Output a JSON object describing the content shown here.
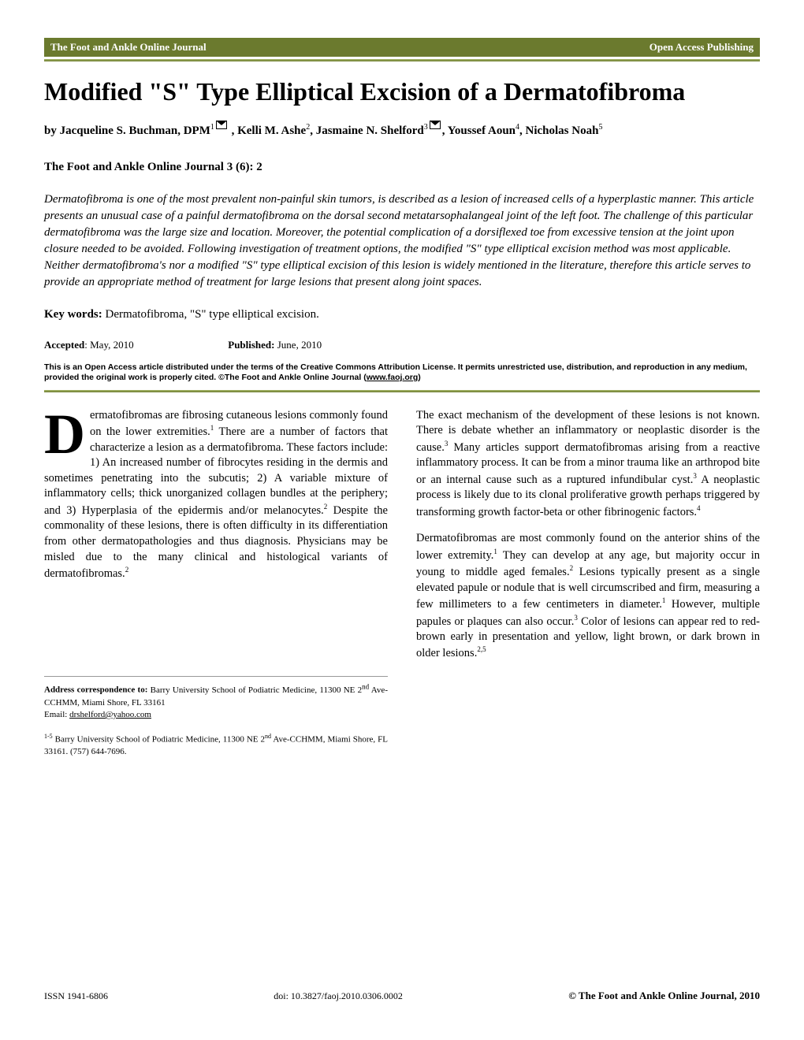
{
  "header": {
    "left": "The Foot and Ankle Online Journal",
    "right": "Open Access Publishing"
  },
  "title": "Modified \"S\" Type Elliptical Excision of a Dermatofibroma",
  "authors_html": "by Jacqueline S. Buchman, DPM<sup>1</sup><span class=\"envelope-icon\" data-name=\"mail-icon\" data-interactable=\"false\"></span> , Kelli M. Ashe<sup>2</sup>, Jasmaine N. Shelford<sup>3</sup><span class=\"envelope-icon\" data-name=\"mail-icon\" data-interactable=\"false\"></span>, Youssef Aoun<sup>4</sup>, Nicholas Noah<sup>5</sup>",
  "journal_ref": "The Foot and Ankle Online Journal 3 (6): 2",
  "abstract": "Dermatofibroma is one of the most prevalent non-painful skin tumors, is described as a lesion of increased cells of a hyperplastic manner.  This article presents an unusual case of a painful dermatofibroma on the dorsal second metatarsophalangeal joint of the left foot. The challenge of this particular dermatofibroma was the large size and location.  Moreover, the potential complication of a dorsiflexed toe from excessive tension at the joint upon closure needed to be avoided. Following investigation of treatment options, the modified \"S\" type elliptical excision method was most applicable.  Neither dermatofibroma's nor a modified \"S\" type elliptical excision of this lesion is widely mentioned in the literature, therefore this article serves to provide an appropriate method of treatment for large lesions that present along joint spaces.",
  "keywords": {
    "label": "Key words:",
    "text": "  Dermatofibroma, \"S\" type elliptical excision."
  },
  "dates": {
    "accepted_label": "Accepted",
    "accepted_value": ":  May, 2010",
    "published_label": "Published:",
    "published_value": "  June, 2010"
  },
  "license": {
    "text": "This is an Open Access article distributed under the terms of the Creative Commons Attribution License.  It permits unrestricted use, distribution, and reproduction in any medium, provided the original work is properly cited. ©The Foot and Ankle Online Journal (",
    "link_text": "www.faoj.org",
    "suffix": ")"
  },
  "body": {
    "dropcap": "D",
    "col1_p1": "ermatofibromas are fibrosing cutaneous lesions commonly found on the lower extremities.<sup>1</sup>  There are a number of factors that characterize a lesion as a dermatofibroma. These factors include:  1) An increased number of fibrocytes residing in the dermis and sometimes penetrating into the subcutis; 2) A variable mixture of inflammatory cells; thick unorganized collagen bundles at the periphery; and 3) Hyperplasia of the epidermis and/or melanocytes.<sup>2</sup>  Despite the commonality of these lesions, there is often difficulty in its differentiation from other dermatopathologies and thus diagnosis. Physicians may be misled due to the many clinical and histological variants of dermatofibromas.<sup>2</sup>",
    "col2_p1": "The exact mechanism of the development of these lesions is not known. There is debate whether an inflammatory or neoplastic disorder is the cause.<sup>3</sup> Many articles support dermatofibromas arising from a reactive inflammatory process.  It can be from a minor trauma like an arthropod bite or an internal cause such as a ruptured infundibular cyst.<sup>3</sup>  A neoplastic process is likely due to its clonal proliferative growth perhaps triggered by transforming growth factor-beta or other fibrinogenic factors.<sup>4</sup>",
    "col2_p2": "Dermatofibromas are most commonly found on the anterior shins of the lower extremity.<sup>1</sup>  They can develop at any age, but majority occur in young to middle aged females.<sup>2</sup>  Lesions typically present as a single elevated papule or nodule that is well circumscribed and firm, measuring a few millimeters to a few centimeters in diameter.<sup>1</sup>  However, multiple papules or plaques can also occur.<sup>3</sup>  Color of lesions can appear red to red-brown early in presentation and yellow, light brown, or dark brown in older lesions.<sup>2,5</sup>"
  },
  "correspondence": {
    "label": "Address correspondence to:",
    "text": "  Barry University School of Podiatric Medicine, 11300 NE 2<sup>nd</sup> Ave-CCHMM, Miami Shore, FL 33161",
    "email_label": "Email: ",
    "email": "drshelford@yahoo.com",
    "affil": "<sup>1-5</sup>  Barry University School of Podiatric Medicine, 11300 NE 2<sup>nd</sup> Ave-CCHMM, Miami Shore, FL 33161.  (757) 644-7696."
  },
  "footer": {
    "issn": "ISSN 1941-6806",
    "doi": "doi: 10.3827/faoj.2010.0306.0002",
    "copyright": "© The Foot and Ankle Online Journal, 2010"
  },
  "colors": {
    "header_bg": "#6b7a2e",
    "divider_top": "#a8b86a",
    "divider_bottom": "#6b7a2e"
  }
}
